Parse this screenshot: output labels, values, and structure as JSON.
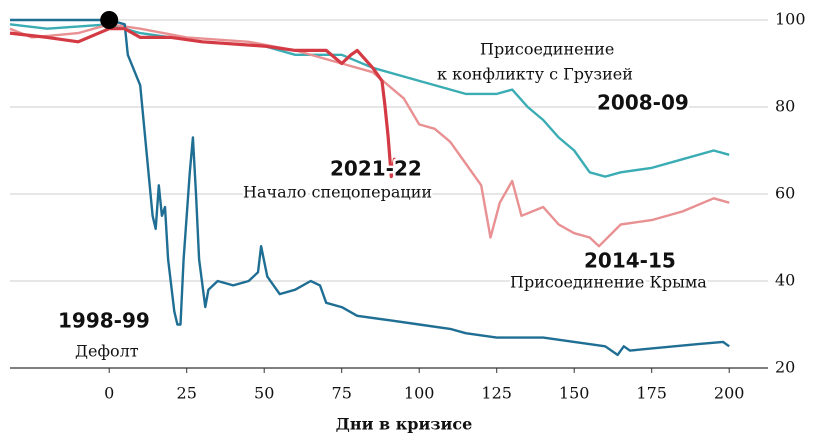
{
  "chart_data": {
    "type": "line",
    "x_label": "Дни в кризисе",
    "xlim": [
      -32,
      205
    ],
    "ylim": [
      20,
      100
    ],
    "xticks": [
      0,
      25,
      50,
      75,
      100,
      125,
      150,
      175,
      200
    ],
    "yticks": [
      20,
      40,
      60,
      80,
      100
    ],
    "grid": true,
    "marker": {
      "x": 0,
      "y": 100,
      "color": "#000000"
    },
    "annotations": [
      "Дефолт",
      "Начало спецоперации",
      "Присоединение",
      "к конфликту с Грузией",
      "Присоединение Крыма"
    ],
    "series": [
      {
        "name": "2008-09",
        "color": "#3aacb4",
        "x": [
          -32,
          -20,
          0,
          10,
          30,
          50,
          60,
          75,
          85,
          100,
          115,
          125,
          130,
          135,
          140,
          145,
          150,
          155,
          160,
          165,
          175,
          185,
          195,
          200
        ],
        "values": [
          99,
          98,
          99,
          97,
          95,
          94,
          92,
          92,
          89,
          86,
          83,
          83,
          84,
          80,
          77,
          73,
          70,
          65,
          64,
          65,
          66,
          68,
          70,
          69
        ]
      },
      {
        "name": "2014-15",
        "color": "#e89092",
        "x": [
          -32,
          -25,
          -10,
          0,
          10,
          25,
          45,
          60,
          75,
          85,
          90,
          95,
          100,
          105,
          110,
          115,
          120,
          123,
          126,
          130,
          133,
          140,
          145,
          150,
          155,
          158,
          165,
          175,
          185,
          195,
          200
        ],
        "values": [
          98,
          96,
          97,
          99,
          98,
          96,
          95,
          93,
          90,
          88,
          85,
          82,
          76,
          75,
          72,
          67,
          62,
          50,
          58,
          63,
          55,
          57,
          53,
          51,
          50,
          48,
          53,
          54,
          56,
          59,
          58
        ]
      },
      {
        "name": "1998-99",
        "color": "#1f6e94",
        "x": [
          -32,
          0,
          5,
          6,
          10,
          12,
          14,
          15,
          16,
          17,
          18,
          19,
          21,
          22,
          23,
          24,
          26,
          27,
          28,
          29,
          31,
          32,
          35,
          40,
          45,
          48,
          49,
          51,
          55,
          60,
          65,
          68,
          70,
          75,
          80,
          90,
          100,
          110,
          115,
          125,
          140,
          150,
          160,
          164,
          166,
          168,
          175,
          190,
          198,
          200
        ],
        "values": [
          100,
          100,
          99,
          92,
          85,
          70,
          55,
          52,
          62,
          55,
          57,
          45,
          33,
          30,
          30,
          45,
          65,
          73,
          60,
          45,
          34,
          38,
          40,
          39,
          40,
          42,
          48,
          41,
          37,
          38,
          40,
          39,
          35,
          34,
          32,
          31,
          30,
          29,
          28,
          27,
          27,
          26,
          25,
          23,
          25,
          24,
          24.5,
          25.5,
          26,
          25
        ]
      },
      {
        "name": "2021-22",
        "color": "#d43a44",
        "x": [
          -32,
          -20,
          -10,
          0,
          5,
          10,
          20,
          30,
          50,
          60,
          70,
          75,
          78,
          80,
          85,
          88,
          89,
          90,
          91,
          92,
          93
        ],
        "values": [
          97,
          96,
          95,
          98,
          98,
          96,
          96,
          95,
          94,
          93,
          93,
          90,
          92,
          93,
          89,
          86,
          80,
          73,
          64,
          68,
          67
        ]
      }
    ]
  }
}
